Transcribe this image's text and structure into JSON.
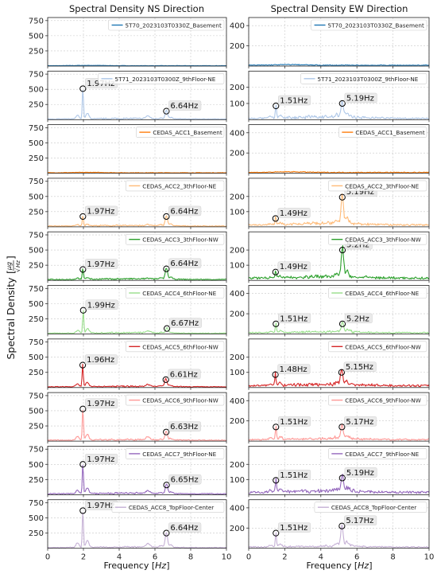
{
  "figure": {
    "ylabel_main": "Spectral Density",
    "ylabel_unit_num": "μg",
    "ylabel_unit_den": "Hz",
    "x_axis_label": "Frequency [",
    "x_axis_unit": "Hz",
    "x_axis_label_end": "]"
  },
  "chart_data": [
    {
      "column": "Spectral Density NS Direction",
      "type": "line",
      "xlabel": "Frequency [Hz]",
      "xlim": [
        0,
        10
      ],
      "xticks": [
        0,
        2,
        4,
        6,
        8,
        10
      ],
      "grid": true,
      "panels": [
        {
          "label": "5T70_2023103T0330Z_Basement",
          "color": "#1f77b4",
          "ylim": [
            0,
            800
          ],
          "yticks": [
            250,
            500,
            750
          ],
          "peaks": [],
          "base_level": 6
        },
        {
          "label": "5T71_2023103T0300Z_9thFloor-NE",
          "color": "#aec7e8",
          "ylim": [
            0,
            800
          ],
          "yticks": [
            250,
            500,
            750
          ],
          "peaks": [
            {
              "x": 1.97,
              "y": 510,
              "label": "1.97Hz"
            },
            {
              "x": 6.64,
              "y": 140,
              "label": "6.64Hz"
            }
          ],
          "base_level": 10
        },
        {
          "label": "CEDAS_ACC1_Basement",
          "color": "#ff7f0e",
          "ylim": [
            0,
            800
          ],
          "yticks": [
            250,
            500,
            750
          ],
          "peaks": [],
          "base_level": 8
        },
        {
          "label": "CEDAS_ACC2_3thFloor-NE",
          "color": "#ffbb78",
          "ylim": [
            0,
            800
          ],
          "yticks": [
            250,
            500,
            750
          ],
          "peaks": [
            {
              "x": 1.97,
              "y": 170,
              "label": "1.97Hz"
            },
            {
              "x": 6.64,
              "y": 170,
              "label": "6.64Hz"
            }
          ],
          "base_level": 12
        },
        {
          "label": "CEDAS_ACC3_3thFloor-NW",
          "color": "#2ca02c",
          "ylim": [
            0,
            800
          ],
          "yticks": [
            250,
            500,
            750
          ],
          "peaks": [
            {
              "x": 1.97,
              "y": 180,
              "label": "1.97Hz"
            },
            {
              "x": 6.64,
              "y": 190,
              "label": "6.64Hz"
            }
          ],
          "base_level": 15
        },
        {
          "label": "CEDAS_ACC4_6thFloor-NE",
          "color": "#98df8a",
          "ylim": [
            0,
            800
          ],
          "yticks": [
            250,
            500,
            750
          ],
          "peaks": [
            {
              "x": 1.99,
              "y": 390,
              "label": "1.99Hz"
            },
            {
              "x": 6.67,
              "y": 90,
              "label": "6.67Hz"
            }
          ],
          "base_level": 12
        },
        {
          "label": "CEDAS_ACC5_6thFloor-NW",
          "color": "#d62728",
          "ylim": [
            0,
            800
          ],
          "yticks": [
            250,
            500,
            750
          ],
          "peaks": [
            {
              "x": 1.96,
              "y": 370,
              "label": "1.96Hz"
            },
            {
              "x": 6.61,
              "y": 130,
              "label": "6.61Hz"
            }
          ],
          "base_level": 12
        },
        {
          "label": "CEDAS_ACC6_9thFloor-NW",
          "color": "#ff9896",
          "ylim": [
            0,
            800
          ],
          "yticks": [
            250,
            500,
            750
          ],
          "peaks": [
            {
              "x": 1.97,
              "y": 530,
              "label": "1.97Hz"
            },
            {
              "x": 6.63,
              "y": 150,
              "label": "6.63Hz"
            }
          ],
          "base_level": 15
        },
        {
          "label": "CEDAS_ACC7_9thFloor-NE",
          "color": "#9467bd",
          "ylim": [
            0,
            800
          ],
          "yticks": [
            250,
            500,
            750
          ],
          "peaks": [
            {
              "x": 1.97,
              "y": 500,
              "label": "1.97Hz"
            },
            {
              "x": 6.65,
              "y": 160,
              "label": "6.65Hz"
            }
          ],
          "base_level": 15
        },
        {
          "label": "CEDAS_ACC8_TopFloor-Center",
          "color": "#c5b0d5",
          "ylim": [
            0,
            800
          ],
          "yticks": [
            250,
            500,
            750
          ],
          "peaks": [
            {
              "x": 1.97,
              "y": 620,
              "label": "1.97Hz"
            },
            {
              "x": 6.64,
              "y": 250,
              "label": "6.64Hz"
            }
          ],
          "base_level": 12
        }
      ]
    },
    {
      "column": "Spectral Density EW Direction",
      "type": "line",
      "xlabel": "Frequency [Hz]",
      "xlim": [
        0,
        10
      ],
      "xticks": [
        0,
        2,
        4,
        6,
        8,
        10
      ],
      "grid": true,
      "panels": [
        {
          "label": "5T70_2023103T0330Z_Basement",
          "color": "#1f77b4",
          "ylim": [
            0,
            480
          ],
          "yticks": [
            200,
            400
          ],
          "peaks": [],
          "base_level": 8
        },
        {
          "label": "5T71_2023103T0300Z_9thFloor-NE",
          "color": "#aec7e8",
          "ylim": [
            0,
            300
          ],
          "yticks": [
            100,
            200
          ],
          "peaks": [
            {
              "x": 1.51,
              "y": 85,
              "label": "1.51Hz"
            },
            {
              "x": 5.19,
              "y": 100,
              "label": "5.19Hz"
            }
          ],
          "base_level": 8
        },
        {
          "label": "CEDAS_ACC1_Basement",
          "color": "#ff7f0e",
          "ylim": [
            0,
            480
          ],
          "yticks": [
            200,
            400
          ],
          "peaks": [],
          "base_level": 8
        },
        {
          "label": "CEDAS_ACC2_3thFloor-NE",
          "color": "#ffbb78",
          "ylim": [
            0,
            320
          ],
          "yticks": [
            100,
            200
          ],
          "peaks": [
            {
              "x": 1.49,
              "y": 55,
              "label": "1.49Hz"
            },
            {
              "x": 5.19,
              "y": 195,
              "label": "5.19Hz"
            }
          ],
          "base_level": 12
        },
        {
          "label": "CEDAS_ACC3_3thFloor-NW",
          "color": "#2ca02c",
          "ylim": [
            0,
            320
          ],
          "yticks": [
            100,
            200
          ],
          "peaks": [
            {
              "x": 1.49,
              "y": 55,
              "label": "1.49Hz"
            },
            {
              "x": 5.2,
              "y": 200,
              "label": "5.2Hz"
            }
          ],
          "base_level": 15
        },
        {
          "label": "CEDAS_ACC4_6thFloor-NE",
          "color": "#98df8a",
          "ylim": [
            0,
            480
          ],
          "yticks": [
            200,
            400
          ],
          "peaks": [
            {
              "x": 1.51,
              "y": 100,
              "label": "1.51Hz"
            },
            {
              "x": 5.2,
              "y": 100,
              "label": "5.2Hz"
            }
          ],
          "base_level": 12
        },
        {
          "label": "CEDAS_ACC5_6thFloor-NW",
          "color": "#d62728",
          "ylim": [
            0,
            320
          ],
          "yticks": [
            100,
            200
          ],
          "peaks": [
            {
              "x": 1.48,
              "y": 85,
              "label": "1.48Hz"
            },
            {
              "x": 5.15,
              "y": 100,
              "label": "5.15Hz"
            }
          ],
          "base_level": 12
        },
        {
          "label": "CEDAS_ACC6_9thFloor-NW",
          "color": "#ff9896",
          "ylim": [
            0,
            480
          ],
          "yticks": [
            200,
            400
          ],
          "peaks": [
            {
              "x": 1.51,
              "y": 140,
              "label": "1.51Hz"
            },
            {
              "x": 5.17,
              "y": 140,
              "label": "5.17Hz"
            }
          ],
          "base_level": 15
        },
        {
          "label": "CEDAS_ACC7_9thFloor-NE",
          "color": "#9467bd",
          "ylim": [
            0,
            320
          ],
          "yticks": [
            100,
            200
          ],
          "peaks": [
            {
              "x": 1.51,
              "y": 95,
              "label": "1.51Hz"
            },
            {
              "x": 5.19,
              "y": 110,
              "label": "5.19Hz"
            }
          ],
          "base_level": 15
        },
        {
          "label": "CEDAS_ACC8_TopFloor-Center",
          "color": "#c5b0d5",
          "ylim": [
            0,
            480
          ],
          "yticks": [
            200,
            400
          ],
          "peaks": [
            {
              "x": 1.51,
              "y": 150,
              "label": "1.51Hz"
            },
            {
              "x": 5.17,
              "y": 220,
              "label": "5.17Hz"
            }
          ],
          "base_level": 12
        }
      ]
    }
  ]
}
